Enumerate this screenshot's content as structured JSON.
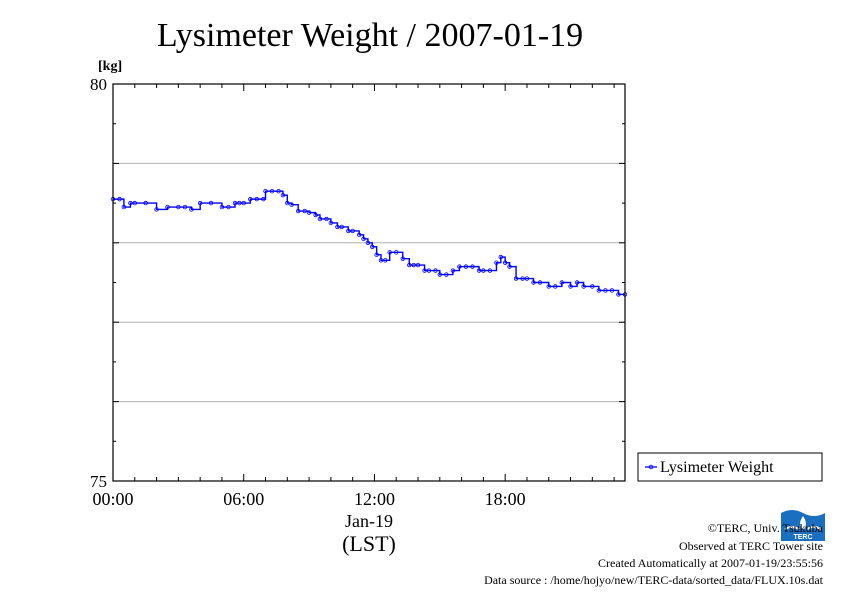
{
  "chart_data": {
    "type": "line",
    "title": "Lysimeter Weight / 2007-01-19",
    "ylabel": "[kg]",
    "xlabel": "Jan-19",
    "xlabel2": "(LST)",
    "ylim": [
      75,
      80
    ],
    "y_ticks": [
      {
        "value": 80,
        "label": "80"
      },
      {
        "value": 75,
        "label": "75"
      }
    ],
    "y_grid": [
      76,
      77,
      78,
      79
    ],
    "xlim_hours": [
      0,
      23.5
    ],
    "x_ticks": [
      {
        "hour": 0,
        "label": "00:00"
      },
      {
        "hour": 6,
        "label": "06:00"
      },
      {
        "hour": 12,
        "label": "12:00"
      },
      {
        "hour": 18,
        "label": "18:00"
      }
    ],
    "grid": true,
    "legend_position": "right",
    "series": [
      {
        "name": "Lysimeter Weight",
        "color": "#0000ff",
        "x_hours": [
          0.0,
          0.3,
          0.5,
          0.8,
          1.0,
          1.5,
          2.0,
          2.5,
          3.0,
          3.3,
          3.6,
          4.0,
          4.5,
          5.0,
          5.3,
          5.6,
          5.8,
          6.0,
          6.3,
          6.6,
          6.9,
          7.0,
          7.3,
          7.6,
          7.8,
          8.0,
          8.2,
          8.5,
          8.8,
          9.0,
          9.3,
          9.5,
          9.8,
          10.0,
          10.3,
          10.5,
          10.8,
          11.0,
          11.3,
          11.5,
          11.7,
          11.9,
          12.1,
          12.3,
          12.5,
          12.7,
          13.0,
          13.3,
          13.6,
          13.8,
          14.0,
          14.3,
          14.5,
          14.8,
          15.0,
          15.3,
          15.6,
          15.9,
          16.2,
          16.5,
          16.8,
          17.0,
          17.3,
          17.6,
          17.8,
          18.0,
          18.2,
          18.5,
          18.8,
          19.0,
          19.3,
          19.6,
          20.0,
          20.3,
          20.6,
          21.0,
          21.3,
          21.6,
          22.0,
          22.3,
          22.6,
          22.9,
          23.2,
          23.5
        ],
        "values": [
          78.55,
          78.55,
          78.45,
          78.5,
          78.5,
          78.5,
          78.42,
          78.45,
          78.45,
          78.45,
          78.42,
          78.5,
          78.5,
          78.45,
          78.45,
          78.5,
          78.5,
          78.5,
          78.55,
          78.55,
          78.55,
          78.65,
          78.65,
          78.65,
          78.6,
          78.5,
          78.48,
          78.4,
          78.4,
          78.38,
          78.35,
          78.3,
          78.3,
          78.25,
          78.2,
          78.2,
          78.15,
          78.15,
          78.1,
          78.05,
          78.0,
          77.95,
          77.85,
          77.78,
          77.78,
          77.88,
          77.88,
          77.8,
          77.72,
          77.72,
          77.72,
          77.65,
          77.65,
          77.65,
          77.6,
          77.6,
          77.65,
          77.7,
          77.7,
          77.7,
          77.65,
          77.65,
          77.65,
          77.75,
          77.82,
          77.75,
          77.7,
          77.55,
          77.55,
          77.55,
          77.5,
          77.5,
          77.45,
          77.45,
          77.5,
          77.45,
          77.5,
          77.45,
          77.45,
          77.4,
          77.4,
          77.4,
          77.35,
          77.35
        ]
      }
    ]
  },
  "credits": {
    "copyright": "©TERC, Univ. Tsukuba",
    "site": "Observed at TERC Tower site",
    "created": "Created Automatically at 2007-01-19/23:55:56",
    "source": "Data source : /home/hojyo/new/TERC-data/sorted_data/FLUX.10s.dat",
    "logo_text": "TERC"
  }
}
